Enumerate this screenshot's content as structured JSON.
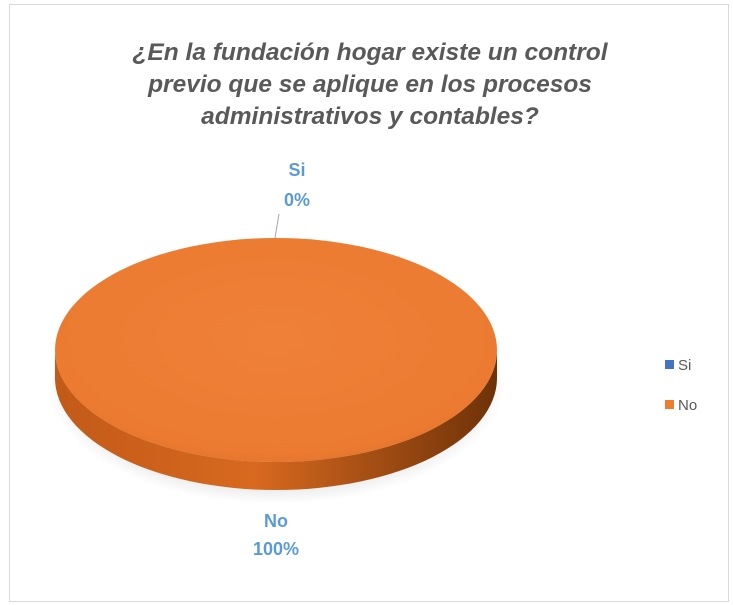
{
  "chart_data": {
    "type": "pie",
    "title_lines": [
      "¿En la fundación hogar existe un control",
      "previo que se aplique en los procesos",
      "administrativos y contables?"
    ],
    "categories": [
      "Si",
      "No"
    ],
    "values": [
      0,
      100
    ],
    "value_labels": [
      "0%",
      "100%"
    ],
    "colors": [
      "#4472c4",
      "#ed7d31"
    ],
    "label_color": "#5b9bd5",
    "legend_position": "right",
    "style": "3d"
  }
}
